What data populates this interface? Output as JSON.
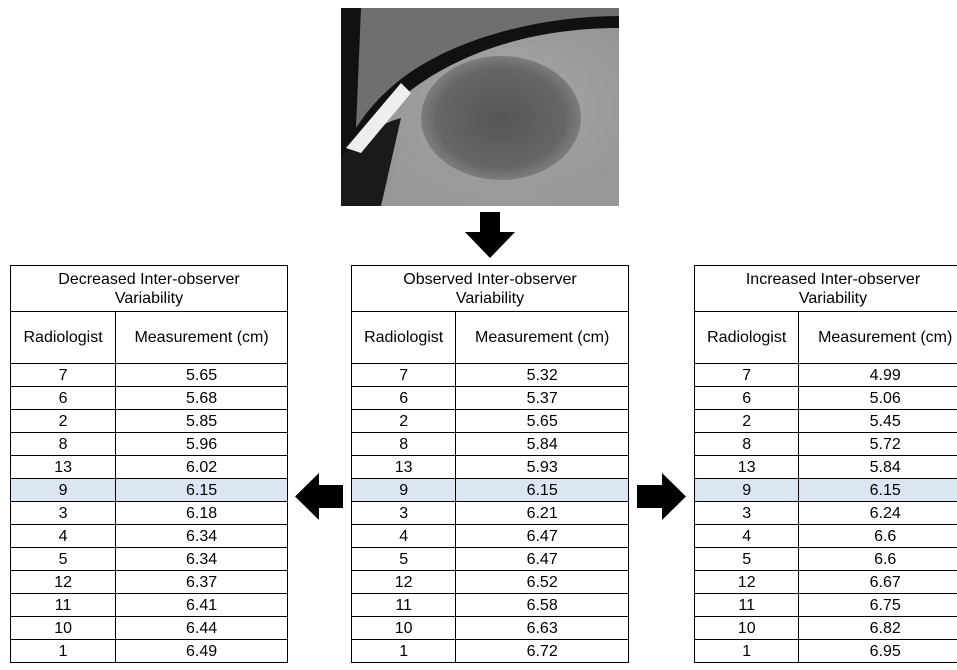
{
  "tables": [
    {
      "title": "Decreased Inter-observer Variability",
      "headers": [
        "Radiologist",
        "Measurement (cm)"
      ],
      "highlighted_row": 5,
      "rows": [
        [
          "7",
          "5.65"
        ],
        [
          "6",
          "5.68"
        ],
        [
          "2",
          "5.85"
        ],
        [
          "8",
          "5.96"
        ],
        [
          "13",
          "6.02"
        ],
        [
          "9",
          "6.15"
        ],
        [
          "3",
          "6.18"
        ],
        [
          "4",
          "6.34"
        ],
        [
          "5",
          "6.34"
        ],
        [
          "12",
          "6.37"
        ],
        [
          "11",
          "6.41"
        ],
        [
          "10",
          "6.44"
        ],
        [
          "1",
          "6.49"
        ]
      ]
    },
    {
      "title": "Observed Inter-observer Variability",
      "headers": [
        "Radiologist",
        "Measurement (cm)"
      ],
      "highlighted_row": 5,
      "rows": [
        [
          "7",
          "5.32"
        ],
        [
          "6",
          "5.37"
        ],
        [
          "2",
          "5.65"
        ],
        [
          "8",
          "5.84"
        ],
        [
          "13",
          "5.93"
        ],
        [
          "9",
          "6.15"
        ],
        [
          "3",
          "6.21"
        ],
        [
          "4",
          "6.47"
        ],
        [
          "5",
          "6.47"
        ],
        [
          "12",
          "6.52"
        ],
        [
          "11",
          "6.58"
        ],
        [
          "10",
          "6.63"
        ],
        [
          "1",
          "6.72"
        ]
      ]
    },
    {
      "title": "Increased Inter-observer Variability",
      "headers": [
        "Radiologist",
        "Measurement (cm)"
      ],
      "highlighted_row": 5,
      "rows": [
        [
          "7",
          "4.99"
        ],
        [
          "6",
          "5.06"
        ],
        [
          "2",
          "5.45"
        ],
        [
          "8",
          "5.72"
        ],
        [
          "13",
          "5.84"
        ],
        [
          "9",
          "6.15"
        ],
        [
          "3",
          "6.24"
        ],
        [
          "4",
          "6.6"
        ],
        [
          "5",
          "6.6"
        ],
        [
          "12",
          "6.67"
        ],
        [
          "11",
          "6.75"
        ],
        [
          "10",
          "6.82"
        ],
        [
          "1",
          "6.95"
        ]
      ]
    }
  ]
}
